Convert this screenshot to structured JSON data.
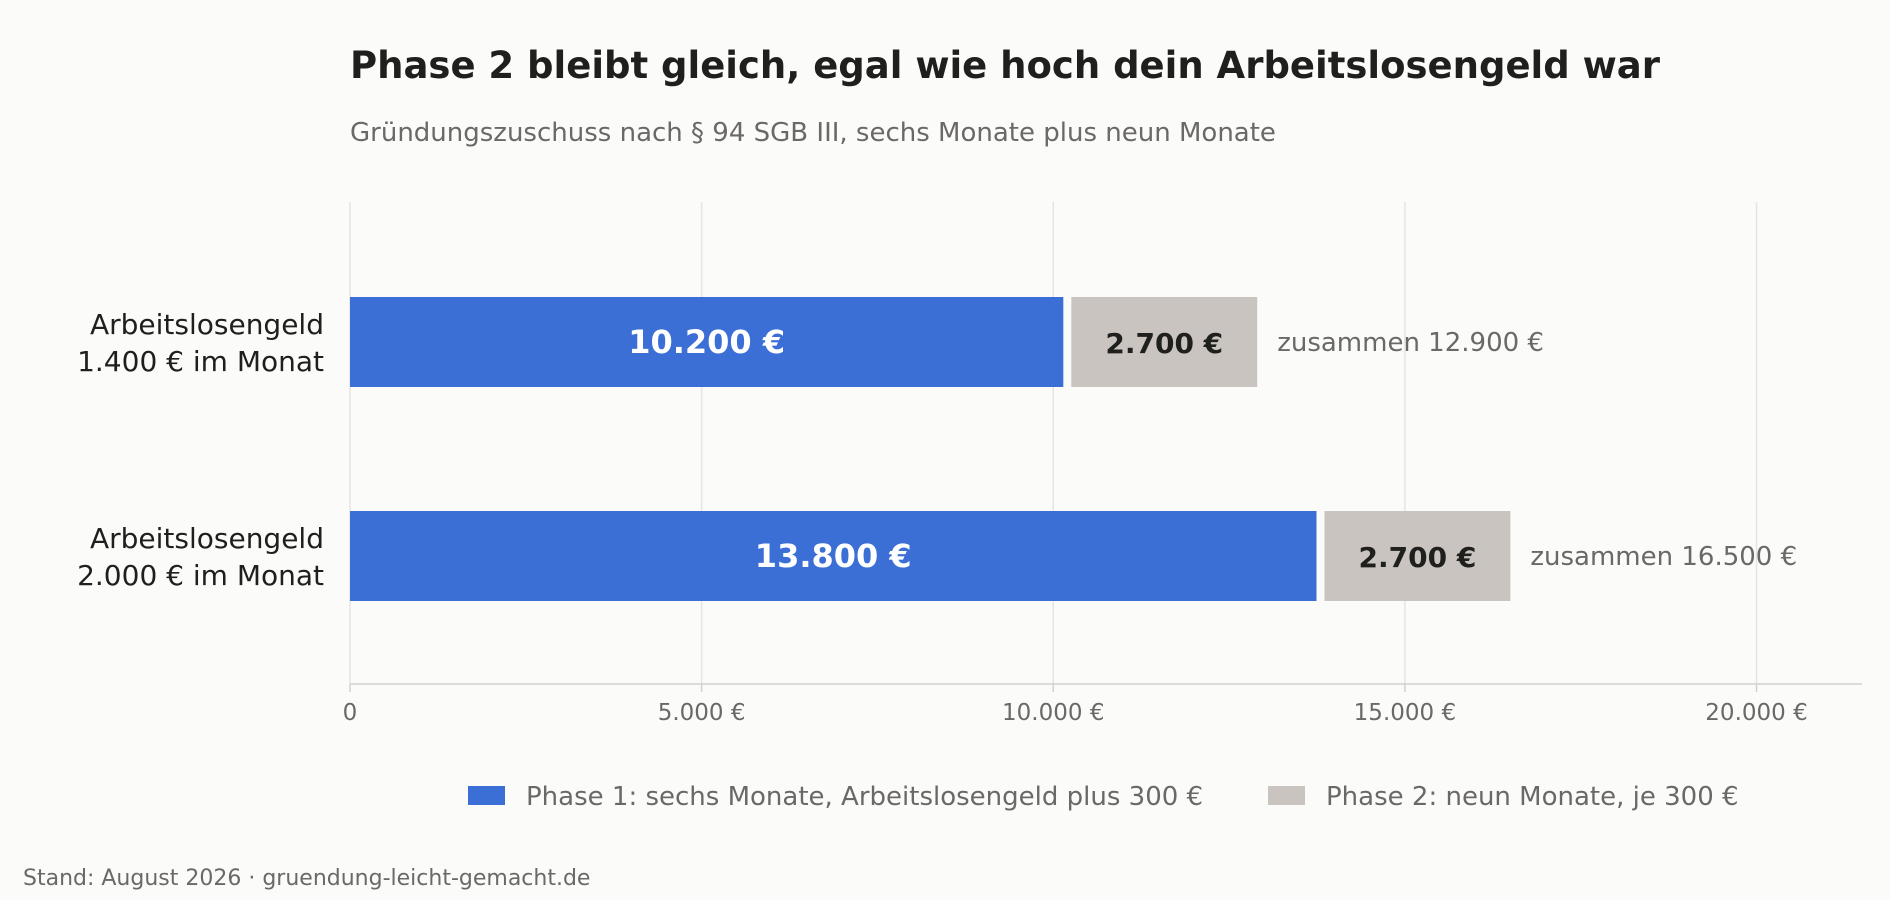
{
  "title": "Phase 2 bleibt gleich, egal wie hoch dein Arbeitslosengeld war",
  "subtitle": "Gründungszuschuss nach § 94 SGB III, sechs Monate plus neun Monate",
  "footer": "Stand: August 2026 · gruendung-leicht-gemacht.de",
  "colors": {
    "phase1": "#3b6fd6",
    "phase2": "#c9c4bf",
    "text_dark": "#1f1f1d",
    "text_muted": "#6b6966",
    "grid": "#e6e5e3",
    "axis": "#d4d2cf"
  },
  "chart_data": {
    "type": "bar",
    "orientation": "horizontal",
    "stacked": true,
    "categories": [
      [
        "Arbeitslosengeld",
        "1.400 € im Monat"
      ],
      [
        "Arbeitslosengeld",
        "2.000 € im Monat"
      ]
    ],
    "series": [
      {
        "name": "Phase 1: sechs Monate, Arbeitslosengeld plus 300 €",
        "values": [
          10200,
          13800
        ],
        "labels": [
          "10.200 €",
          "13.800 €"
        ]
      },
      {
        "name": "Phase 2: neun Monate, je 300 €",
        "values": [
          2700,
          2700
        ],
        "labels": [
          "2.700 €",
          "2.700 €"
        ]
      }
    ],
    "totals": [
      "zusammen 12.900 €",
      "zusammen 16.500 €"
    ],
    "xlim": [
      0,
      21500
    ],
    "xticks": [
      0,
      5000,
      10000,
      15000,
      20000
    ],
    "xtick_labels": [
      "0",
      "5.000 €",
      "10.000 €",
      "15.000 €",
      "20.000 €"
    ],
    "grid": "vertical",
    "legend_position": "bottom"
  }
}
